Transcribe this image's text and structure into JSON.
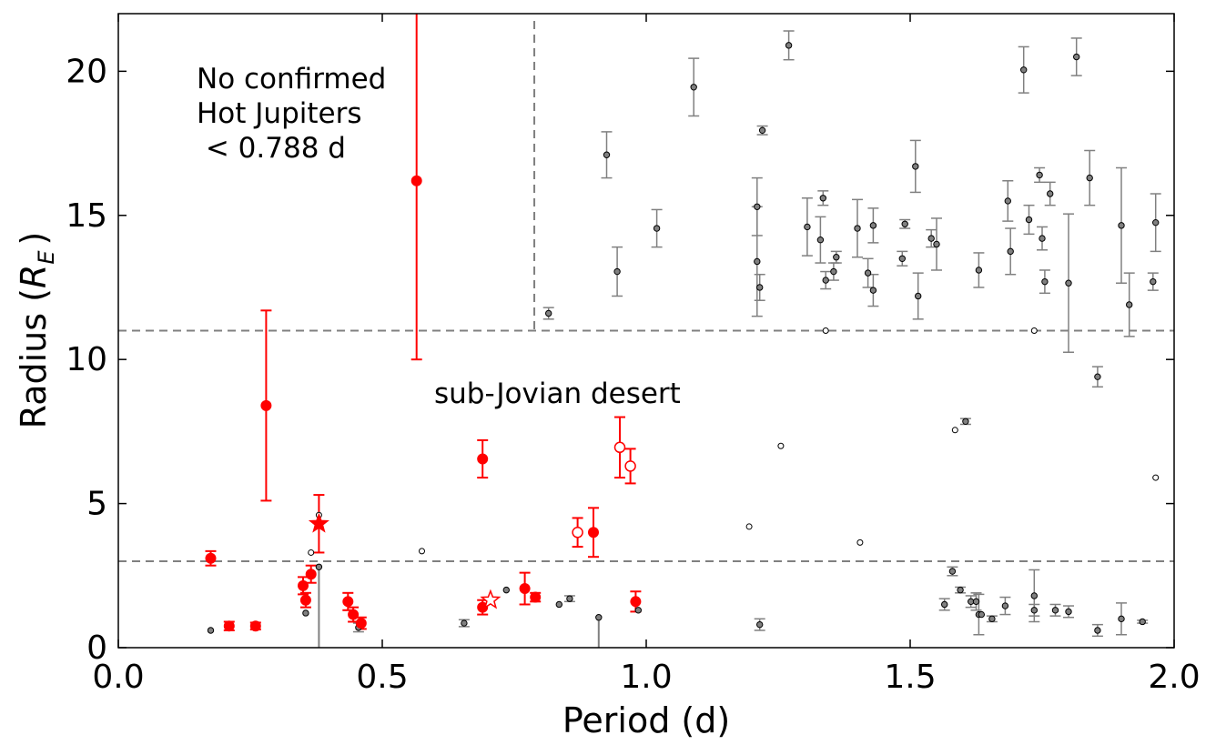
{
  "chart_data": {
    "type": "scatter",
    "xlabel": "Period (d)",
    "ylabel_main": "Radius (",
    "ylabel_sym": "R",
    "ylabel_sub": "E",
    "ylabel_close": ")",
    "xlim": [
      0.0,
      2.0
    ],
    "ylim": [
      0,
      22
    ],
    "xticks": [
      0.0,
      0.5,
      1.0,
      1.5,
      2.0
    ],
    "xtick_labels": [
      "0.0",
      "0.5",
      "1.0",
      "1.5",
      "2.0"
    ],
    "yticks": [
      0,
      5,
      10,
      15,
      20
    ],
    "ytick_labels": [
      "0",
      "5",
      "10",
      "15",
      "20"
    ],
    "annotations": {
      "hot_jupiters": [
        "No confirmed",
        "Hot Jupiters",
        " < 0.788 d"
      ],
      "desert": "sub-Jovian desert"
    },
    "reference_lines": {
      "period_cut": 0.788,
      "radius_upper": 11.0,
      "radius_lower": 3.0
    },
    "colors": {
      "highlight": "#ff0000",
      "background_points": "#808080",
      "line": "#808080"
    },
    "series": [
      {
        "name": "highlighted-filled",
        "points": [
          [
            0.175,
            3.1,
            0.25
          ],
          [
            0.21,
            0.75,
            0.15
          ],
          [
            0.26,
            0.75,
            0.12
          ],
          [
            0.28,
            8.4,
            3.3
          ],
          [
            0.35,
            2.15,
            0.3
          ],
          [
            0.355,
            1.65,
            0.25
          ],
          [
            0.365,
            2.55,
            0.3
          ],
          [
            0.435,
            1.6,
            0.3
          ],
          [
            0.445,
            1.15,
            0.25
          ],
          [
            0.46,
            0.85,
            0.2
          ],
          [
            0.565,
            16.2,
            6.2
          ],
          [
            0.69,
            6.55,
            0.65
          ],
          [
            0.69,
            1.4,
            0.25
          ],
          [
            0.77,
            2.05,
            0.55
          ],
          [
            0.79,
            1.75,
            0.15
          ],
          [
            0.9,
            4.0,
            0.85
          ],
          [
            0.98,
            1.6,
            0.35
          ]
        ]
      },
      {
        "name": "highlighted-open",
        "points": [
          [
            0.87,
            4.0,
            0.5
          ],
          [
            0.95,
            6.95,
            1.05
          ],
          [
            0.97,
            6.3,
            0.6
          ]
        ]
      },
      {
        "name": "highlighted-star",
        "points": [
          [
            0.38,
            4.3,
            1.0,
            1
          ],
          [
            0.705,
            1.65,
            0,
            0
          ]
        ]
      },
      {
        "name": "background-filled",
        "points": [
          [
            0.175,
            0.6,
            0
          ],
          [
            0.355,
            1.2,
            0
          ],
          [
            0.38,
            2.8,
            0
          ],
          [
            0.455,
            0.7,
            0.15
          ],
          [
            0.655,
            0.85,
            0.12
          ],
          [
            0.735,
            2.0,
            0
          ],
          [
            0.815,
            11.6,
            0.2
          ],
          [
            0.835,
            1.5,
            0
          ],
          [
            0.855,
            1.7,
            0.1
          ],
          [
            0.91,
            1.05,
            0
          ],
          [
            0.925,
            17.1,
            0.8
          ],
          [
            0.945,
            13.05,
            0.85
          ],
          [
            0.985,
            1.3,
            0
          ],
          [
            1.02,
            14.55,
            0.65
          ],
          [
            1.09,
            19.45,
            1.0
          ],
          [
            1.21,
            13.4,
            1.9
          ],
          [
            1.21,
            15.3,
            1.0
          ],
          [
            1.215,
            12.5,
            0.45
          ],
          [
            1.215,
            0.8,
            0.2
          ],
          [
            1.22,
            17.95,
            0.15
          ],
          [
            1.27,
            20.9,
            0.5
          ],
          [
            1.305,
            14.6,
            1.0
          ],
          [
            1.33,
            14.15,
            0.8
          ],
          [
            1.335,
            15.6,
            0.25
          ],
          [
            1.34,
            12.75,
            0.3
          ],
          [
            1.355,
            13.05,
            0.3
          ],
          [
            1.36,
            13.55,
            0.2
          ],
          [
            1.4,
            14.55,
            1.0
          ],
          [
            1.42,
            13.0,
            0.5
          ],
          [
            1.43,
            14.65,
            0.6
          ],
          [
            1.43,
            12.4,
            0.55
          ],
          [
            1.485,
            13.5,
            0.25
          ],
          [
            1.49,
            14.7,
            0.15
          ],
          [
            1.51,
            16.7,
            0.9
          ],
          [
            1.515,
            12.2,
            0.8
          ],
          [
            1.54,
            14.2,
            0.3
          ],
          [
            1.55,
            14.0,
            0.9
          ],
          [
            1.565,
            1.5,
            0.2
          ],
          [
            1.58,
            2.65,
            0.15
          ],
          [
            1.595,
            2.0,
            0.1
          ],
          [
            1.605,
            7.85,
            0.1
          ],
          [
            1.615,
            1.6,
            0.2
          ],
          [
            1.625,
            1.6,
            0.3
          ],
          [
            1.63,
            13.1,
            0.6
          ],
          [
            1.63,
            1.15,
            0.7
          ],
          [
            1.635,
            1.15,
            0
          ],
          [
            1.655,
            1.0,
            0.1
          ],
          [
            1.68,
            1.45,
            0.3
          ],
          [
            1.685,
            15.5,
            0.7
          ],
          [
            1.69,
            13.75,
            0.8
          ],
          [
            1.715,
            20.05,
            0.8
          ],
          [
            1.725,
            14.85,
            0.5
          ],
          [
            1.735,
            1.8,
            0.9
          ],
          [
            1.735,
            1.3,
            0.2
          ],
          [
            1.745,
            16.4,
            0.25
          ],
          [
            1.75,
            14.2,
            0.4
          ],
          [
            1.755,
            12.7,
            0.4
          ],
          [
            1.765,
            15.75,
            0.4
          ],
          [
            1.775,
            1.3,
            0.2
          ],
          [
            1.8,
            1.25,
            0.2
          ],
          [
            1.8,
            12.65,
            2.4
          ],
          [
            1.84,
            16.3,
            0.95
          ],
          [
            1.855,
            9.4,
            0.35
          ],
          [
            1.855,
            0.6,
            0.2
          ],
          [
            1.815,
            20.5,
            0.65
          ],
          [
            1.9,
            14.65,
            2.0
          ],
          [
            1.9,
            1.0,
            0.55
          ],
          [
            1.915,
            11.9,
            1.1
          ],
          [
            1.94,
            0.9,
            0.05
          ],
          [
            1.96,
            12.7,
            0.3
          ],
          [
            1.965,
            14.75,
            1.0
          ]
        ]
      },
      {
        "name": "background-open",
        "points": [
          [
            0.365,
            3.3
          ],
          [
            0.38,
            4.6
          ],
          [
            0.575,
            3.35
          ],
          [
            1.195,
            4.2
          ],
          [
            1.255,
            7.0
          ],
          [
            1.34,
            11.0
          ],
          [
            1.405,
            3.65
          ],
          [
            1.585,
            7.55
          ],
          [
            1.735,
            11.0
          ],
          [
            1.965,
            5.9
          ]
        ]
      },
      {
        "name": "drop-lines",
        "points": [
          [
            0.38,
            2.8
          ],
          [
            0.91,
            1.05
          ]
        ]
      }
    ]
  }
}
